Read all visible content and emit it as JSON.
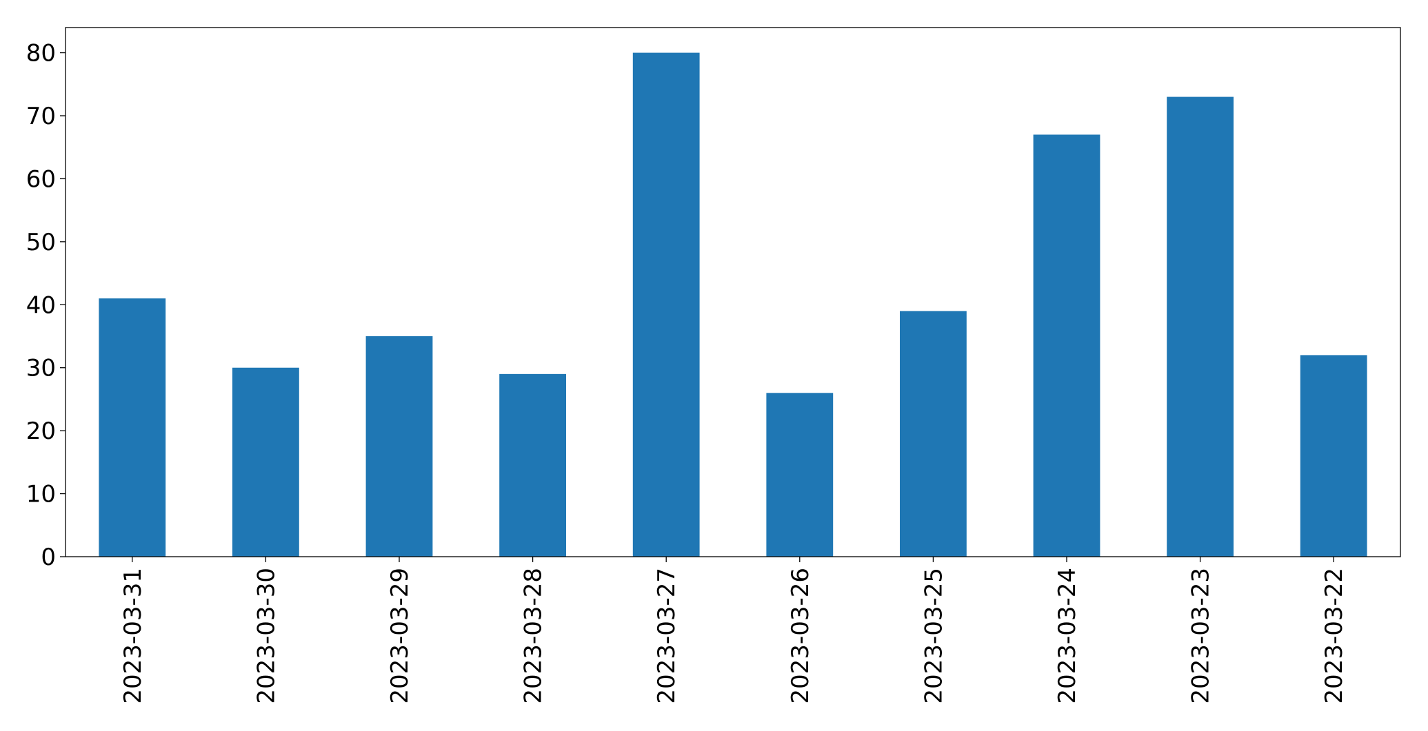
{
  "chart_data": {
    "type": "bar",
    "categories": [
      "2023-03-31",
      "2023-03-30",
      "2023-03-29",
      "2023-03-28",
      "2023-03-27",
      "2023-03-26",
      "2023-03-25",
      "2023-03-24",
      "2023-03-23",
      "2023-03-22"
    ],
    "values": [
      41,
      30,
      35,
      29,
      80,
      26,
      39,
      67,
      73,
      32
    ],
    "color": "#1f77b4",
    "ylim": [
      0,
      84
    ],
    "yticks": [
      0,
      10,
      20,
      30,
      40,
      50,
      60,
      70,
      80
    ],
    "grid": false
  }
}
